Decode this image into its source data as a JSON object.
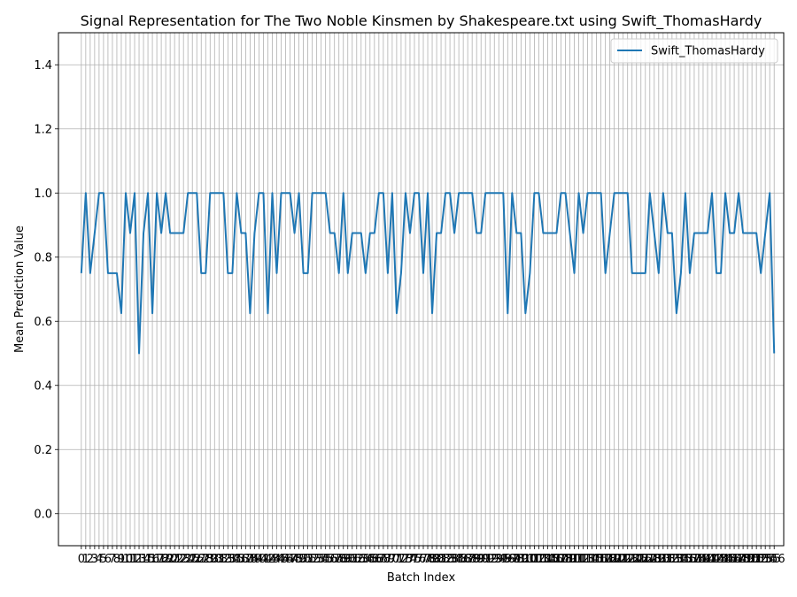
{
  "chart_data": {
    "type": "line",
    "title": "Signal Representation for The Two Noble Kinsmen by Shakespeare.txt using Swift_ThomasHardy",
    "xlabel": "Batch Index",
    "ylabel": "Mean Prediction Value",
    "xlim": [
      -5.15,
      158.15
    ],
    "ylim": [
      -0.1,
      1.5
    ],
    "yticks": [
      0.0,
      0.2,
      0.4,
      0.6,
      0.8,
      1.0,
      1.2,
      1.4
    ],
    "ytick_labels": [
      "0.0",
      "0.2",
      "0.4",
      "0.6",
      "0.8",
      "1.0",
      "1.2",
      "1.4"
    ],
    "grid": true,
    "legend_position": "upper right",
    "series": [
      {
        "name": "Swift_ThomasHardy",
        "color": "#1f77b4",
        "x_start": 0,
        "values": [
          0.75,
          1.0,
          0.75,
          0.875,
          1.0,
          1.0,
          0.75,
          0.75,
          0.75,
          0.625,
          1.0,
          0.875,
          1.0,
          0.5,
          0.875,
          1.0,
          0.625,
          1.0,
          0.875,
          1.0,
          0.875,
          0.875,
          0.875,
          0.875,
          1.0,
          1.0,
          1.0,
          0.75,
          0.75,
          1.0,
          1.0,
          1.0,
          1.0,
          0.75,
          0.75,
          1.0,
          0.875,
          0.875,
          0.625,
          0.875,
          1.0,
          1.0,
          0.625,
          1.0,
          0.75,
          1.0,
          1.0,
          1.0,
          0.875,
          1.0,
          0.75,
          0.75,
          1.0,
          1.0,
          1.0,
          1.0,
          0.875,
          0.875,
          0.75,
          1.0,
          0.75,
          0.875,
          0.875,
          0.875,
          0.75,
          0.875,
          0.875,
          1.0,
          1.0,
          0.75,
          1.0,
          0.625,
          0.75,
          1.0,
          0.875,
          1.0,
          1.0,
          0.75,
          1.0,
          0.625,
          0.875,
          0.875,
          1.0,
          1.0,
          0.875,
          1.0,
          1.0,
          1.0,
          1.0,
          0.875,
          0.875,
          1.0,
          1.0,
          1.0,
          1.0,
          1.0,
          0.625,
          1.0,
          0.875,
          0.875,
          0.625,
          0.75,
          1.0,
          1.0,
          0.875,
          0.875,
          0.875,
          0.875,
          1.0,
          1.0,
          0.875,
          0.75,
          1.0,
          0.875,
          1.0,
          1.0,
          1.0,
          1.0,
          0.75,
          0.875,
          1.0,
          1.0,
          1.0,
          1.0,
          0.75,
          0.75,
          0.75,
          0.75,
          1.0,
          0.875,
          0.75,
          1.0,
          0.875,
          0.875,
          0.625,
          0.75,
          1.0,
          0.75,
          0.875,
          0.875,
          0.875,
          0.875,
          1.0,
          0.75,
          0.75,
          1.0,
          0.875,
          0.875,
          1.0,
          0.875,
          0.875,
          0.875,
          0.875,
          0.75,
          0.875,
          1.0,
          0.5
        ]
      }
    ]
  }
}
